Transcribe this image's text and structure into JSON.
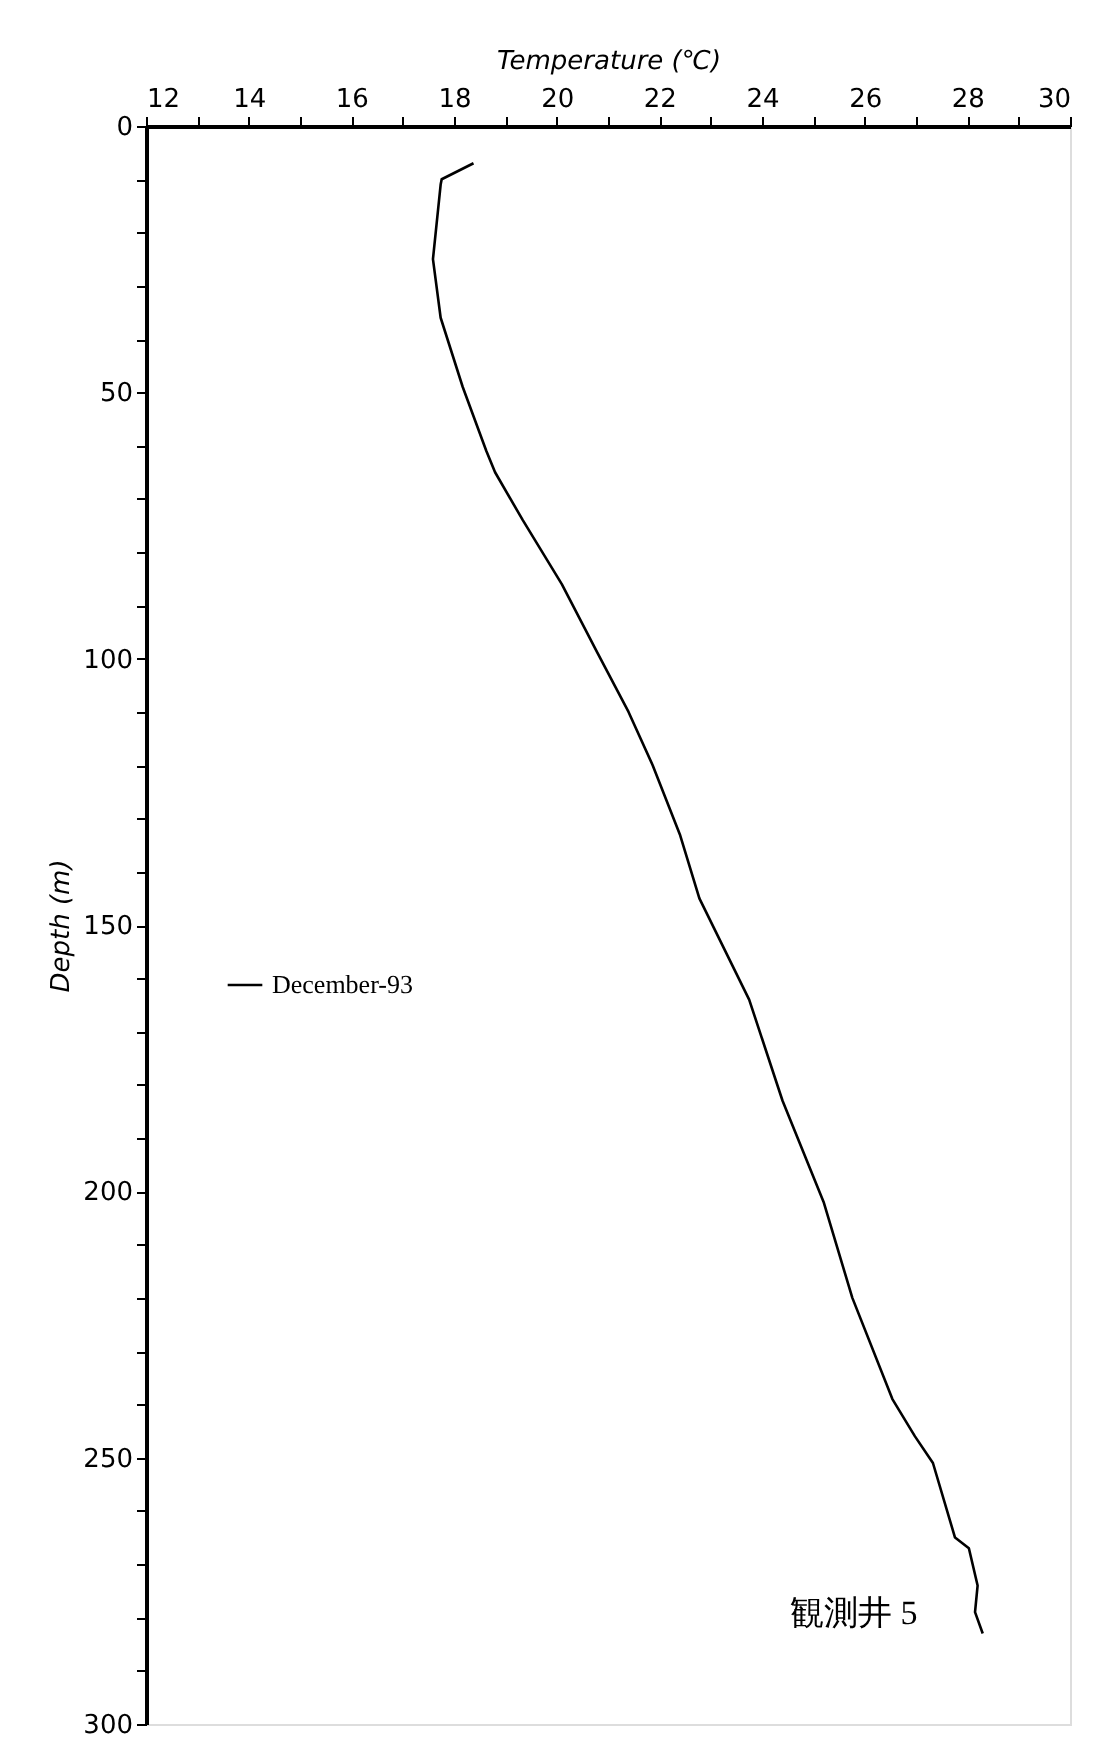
{
  "chart_data": {
    "type": "line",
    "xlabel": "Temperature (℃)",
    "ylabel": "Depth (m)",
    "x": [
      18.38,
      17.76,
      17.74,
      17.59,
      17.74,
      18.17,
      18.63,
      18.8,
      19.34,
      20.1,
      20.8,
      21.4,
      21.87,
      22.4,
      22.78,
      23.75,
      24.4,
      25.2,
      25.76,
      26.54,
      26.98,
      27.33,
      27.76,
      28.03,
      28.2,
      28.15,
      28.3
    ],
    "series": [
      {
        "name": "December-93",
        "color": "#000000",
        "values": [
          7,
          10,
          11,
          25,
          36,
          49,
          61,
          65,
          74,
          86,
          99,
          110,
          120,
          133,
          145,
          164,
          183,
          202,
          220,
          239,
          246,
          251,
          265,
          267,
          274,
          279,
          283
        ]
      }
    ],
    "xlim": [
      12,
      30
    ],
    "xticks": [
      12,
      {
        "value": 13,
        "label": null
      },
      14,
      {
        "value": 15,
        "label": null
      },
      16,
      {
        "value": 17,
        "label": null
      },
      18,
      {
        "value": 19,
        "label": null
      },
      20,
      {
        "value": 21,
        "label": null
      },
      22,
      {
        "value": 23,
        "label": null
      },
      24,
      {
        "value": 25,
        "label": null
      },
      26,
      {
        "value": 27,
        "label": null
      },
      28,
      {
        "value": 29,
        "label": null
      },
      30
    ],
    "ylim": [
      300,
      0
    ],
    "yticks": [
      0,
      {
        "value": 10,
        "label": null
      },
      {
        "value": 20,
        "label": null
      },
      {
        "value": 30,
        "label": null
      },
      {
        "value": 40,
        "label": null
      },
      50,
      {
        "value": 60,
        "label": null
      },
      {
        "value": 70,
        "label": null
      },
      {
        "value": 80,
        "label": null
      },
      {
        "value": 90,
        "label": null
      },
      100,
      {
        "value": 110,
        "label": null
      },
      {
        "value": 120,
        "label": null
      },
      {
        "value": 130,
        "label": null
      },
      {
        "value": 140,
        "label": null
      },
      150,
      {
        "value": 160,
        "label": null
      },
      {
        "value": 170,
        "label": null
      },
      {
        "value": 180,
        "label": null
      },
      {
        "value": 190,
        "label": null
      },
      200,
      {
        "value": 210,
        "label": null
      },
      {
        "value": 220,
        "label": null
      },
      {
        "value": 230,
        "label": null
      },
      {
        "value": 240,
        "label": null
      },
      250,
      {
        "value": 260,
        "label": null
      },
      {
        "value": 270,
        "label": null
      },
      {
        "value": 280,
        "label": null
      },
      {
        "value": 290,
        "label": null
      },
      300
    ],
    "annotations": [
      "観測井 5"
    ],
    "legend": "left",
    "grid": false,
    "marker": "none",
    "line_style": "solid"
  }
}
